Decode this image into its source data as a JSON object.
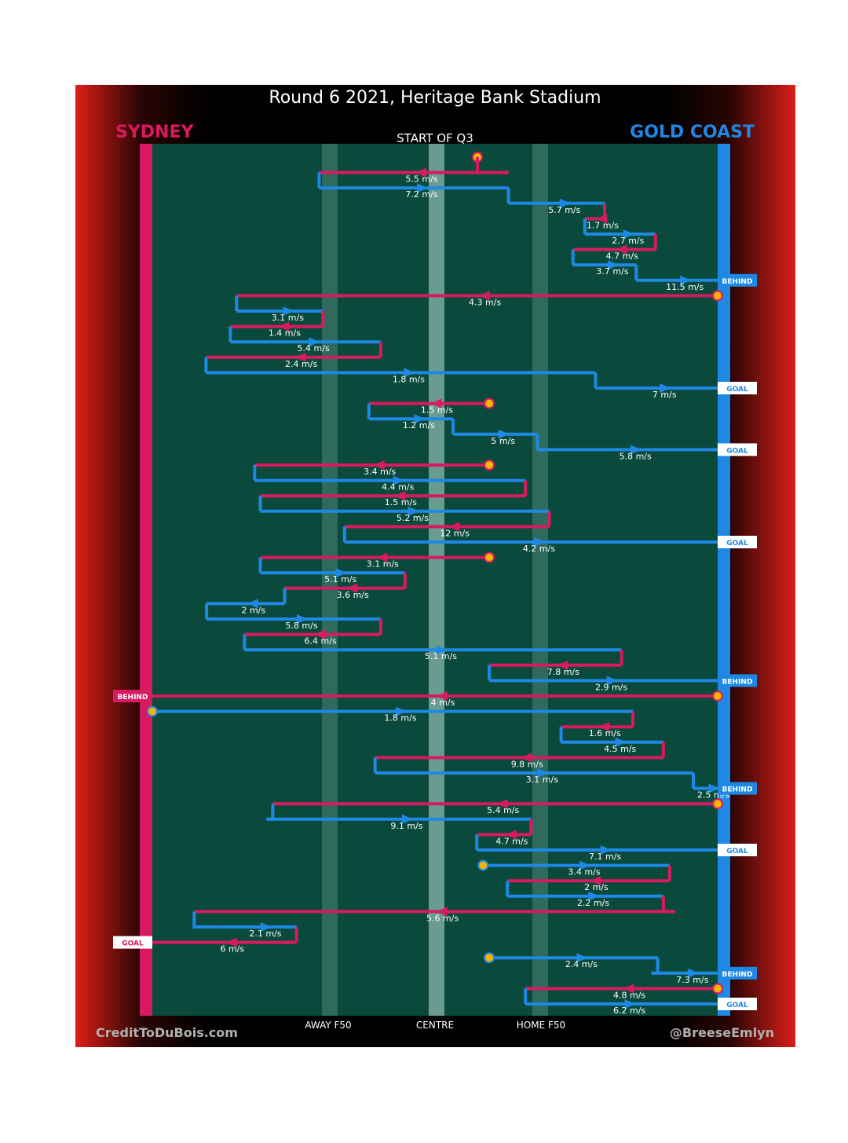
{
  "title": "Round 6 2021, Heritage Bank Stadium",
  "subtitle": "START OF Q3",
  "teams": {
    "left": {
      "name": "SYDNEY",
      "color": "#d81b60"
    },
    "right": {
      "name": "GOLD COAST",
      "color": "#1e88e5"
    }
  },
  "axis_labels": {
    "away": "AWAY F50",
    "centre": "CENTRE",
    "home": "HOME F50"
  },
  "credits": {
    "left": "CreditToDuBois.com",
    "right": "@BreeseEmlyn"
  },
  "colors": {
    "background": "#dd1e17",
    "field": "#0a4a3c",
    "pink": "#d81b60",
    "blue": "#1e88e5",
    "marker": "#f4b400",
    "header": "#000000"
  },
  "chart_data": {
    "type": "line",
    "description_units": "x = field position from 0 (Sydney goal line) to 1 (Gold Coast goal line); y = step order down the page",
    "segments": [
      {
        "team": "pink",
        "from": 0.575,
        "to": 0.575,
        "speed": ""
      },
      {
        "team": "pink",
        "from": 0.63,
        "to": 0.295,
        "speed": "5.5 m/s"
      },
      {
        "team": "blue",
        "from": 0.295,
        "to": 0.63,
        "speed": "7.2 m/s"
      },
      {
        "team": "blue",
        "from": 0.63,
        "to": 0.8,
        "speed": "5.7 m/s"
      },
      {
        "team": "pink",
        "from": 0.8,
        "to": 0.765,
        "speed": "1.7 m/s"
      },
      {
        "team": "blue",
        "from": 0.765,
        "to": 0.89,
        "speed": "2.7 m/s"
      },
      {
        "team": "pink",
        "from": 0.89,
        "to": 0.744,
        "speed": "4.7 m/s"
      },
      {
        "team": "blue",
        "from": 0.744,
        "to": 0.856,
        "speed": "3.7 m/s"
      },
      {
        "team": "blue",
        "from": 0.856,
        "to": 1.0,
        "speed": "11.5 m/s",
        "end": "BEHIND"
      },
      {
        "team": "pink",
        "from": 1.0,
        "to": 0.149,
        "speed": "4.3 m/s"
      },
      {
        "team": "blue",
        "from": 0.149,
        "to": 0.302,
        "speed": "3.1 m/s"
      },
      {
        "team": "pink",
        "from": 0.302,
        "to": 0.138,
        "speed": "1.4 m/s"
      },
      {
        "team": "blue",
        "from": 0.138,
        "to": 0.404,
        "speed": "5.4 m/s"
      },
      {
        "team": "pink",
        "from": 0.404,
        "to": 0.095,
        "speed": "2.4 m/s"
      },
      {
        "team": "blue",
        "from": 0.095,
        "to": 0.784,
        "speed": "1.8 m/s"
      },
      {
        "team": "blue",
        "from": 0.784,
        "to": 1.0,
        "speed": "7 m/s",
        "end": "GOAL"
      },
      {
        "team": "pink",
        "from": 0.596,
        "to": 0.383,
        "speed": "1.5 m/s"
      },
      {
        "team": "blue",
        "from": 0.383,
        "to": 0.532,
        "speed": "1.2 m/s"
      },
      {
        "team": "blue",
        "from": 0.532,
        "to": 0.681,
        "speed": "5 m/s"
      },
      {
        "team": "blue",
        "from": 0.681,
        "to": 1.0,
        "speed": "5.8 m/s",
        "end": "GOAL"
      },
      {
        "team": "pink",
        "from": 0.596,
        "to": 0.181,
        "speed": "3.4 m/s"
      },
      {
        "team": "blue",
        "from": 0.181,
        "to": 0.66,
        "speed": "4.4 m/s"
      },
      {
        "team": "pink",
        "from": 0.66,
        "to": 0.191,
        "speed": "1.5 m/s"
      },
      {
        "team": "blue",
        "from": 0.191,
        "to": 0.702,
        "speed": "5.2 m/s"
      },
      {
        "team": "pink",
        "from": 0.702,
        "to": 0.34,
        "speed": "12 m/s"
      },
      {
        "team": "blue",
        "from": 0.34,
        "to": 1.0,
        "speed": "4.2 m/s",
        "end": "GOAL"
      },
      {
        "team": "pink",
        "from": 0.596,
        "to": 0.191,
        "speed": "3.1 m/s"
      },
      {
        "team": "blue",
        "from": 0.191,
        "to": 0.447,
        "speed": "5.1 m/s"
      },
      {
        "team": "pink",
        "from": 0.447,
        "to": 0.234,
        "speed": "3.6 m/s"
      },
      {
        "team": "blue",
        "from": 0.234,
        "to": 0.096,
        "speed": "2 m/s"
      },
      {
        "team": "blue",
        "from": 0.096,
        "to": 0.404,
        "speed": "5.8 m/s"
      },
      {
        "team": "pink",
        "from": 0.404,
        "to": 0.163,
        "speed": "6.4 m/s"
      },
      {
        "team": "blue",
        "from": 0.163,
        "to": 0.83,
        "speed": "5.1 m/s"
      },
      {
        "team": "pink",
        "from": 0.83,
        "to": 0.596,
        "speed": "7.8 m/s"
      },
      {
        "team": "blue",
        "from": 0.596,
        "to": 1.0,
        "speed": "2.9 m/s",
        "end": "BEHIND"
      },
      {
        "team": "pink",
        "from": 1.0,
        "to": 0.0,
        "speed": "4 m/s",
        "end": "BEHIND"
      },
      {
        "team": "blue",
        "from": 0.0,
        "to": 0.85,
        "speed": "1.8 m/s"
      },
      {
        "team": "pink",
        "from": 0.85,
        "to": 0.723,
        "speed": "1.6 m/s"
      },
      {
        "team": "blue",
        "from": 0.723,
        "to": 0.904,
        "speed": "4.5 m/s"
      },
      {
        "team": "pink",
        "from": 0.904,
        "to": 0.394,
        "speed": "9.8 m/s"
      },
      {
        "team": "blue",
        "from": 0.394,
        "to": 0.957,
        "speed": "3.1 m/s"
      },
      {
        "team": "blue",
        "from": 0.957,
        "to": 1.0,
        "speed": "2.5 m/s",
        "end": "BEHIND"
      },
      {
        "team": "pink",
        "from": 1.0,
        "to": 0.213,
        "speed": "5.4 m/s"
      },
      {
        "team": "blue",
        "from": 0.202,
        "to": 0.67,
        "speed": "9.1 m/s"
      },
      {
        "team": "pink",
        "from": 0.67,
        "to": 0.574,
        "speed": "4.7 m/s"
      },
      {
        "team": "blue",
        "from": 0.574,
        "to": 1.0,
        "speed": "7.1 m/s",
        "end": "GOAL"
      },
      {
        "team": "blue",
        "from": 0.585,
        "to": 0.915,
        "speed": "3.4 m/s"
      },
      {
        "team": "pink",
        "from": 0.915,
        "to": 0.628,
        "speed": "2 m/s"
      },
      {
        "team": "blue",
        "from": 0.628,
        "to": 0.904,
        "speed": "2.2 m/s"
      },
      {
        "team": "pink",
        "from": 0.925,
        "to": 0.074,
        "speed": "5.6 m/s"
      },
      {
        "team": "blue",
        "from": 0.117,
        "to": 0.255,
        "speed": "2.1 m/s"
      },
      {
        "team": "pink",
        "from": 0.255,
        "to": 0.0,
        "speed": "6 m/s",
        "end": "GOAL"
      },
      {
        "team": "blue",
        "from": 0.596,
        "to": 0.894,
        "speed": "2.4 m/s"
      },
      {
        "team": "blue",
        "from": 0.883,
        "to": 1.0,
        "speed": "7.3 m/s",
        "end": "BEHIND"
      },
      {
        "team": "pink",
        "from": 1.0,
        "to": 0.66,
        "speed": "4.8 m/s"
      },
      {
        "team": "blue",
        "from": 0.66,
        "to": 1.0,
        "speed": "6.2 m/s",
        "end": "GOAL"
      }
    ]
  }
}
